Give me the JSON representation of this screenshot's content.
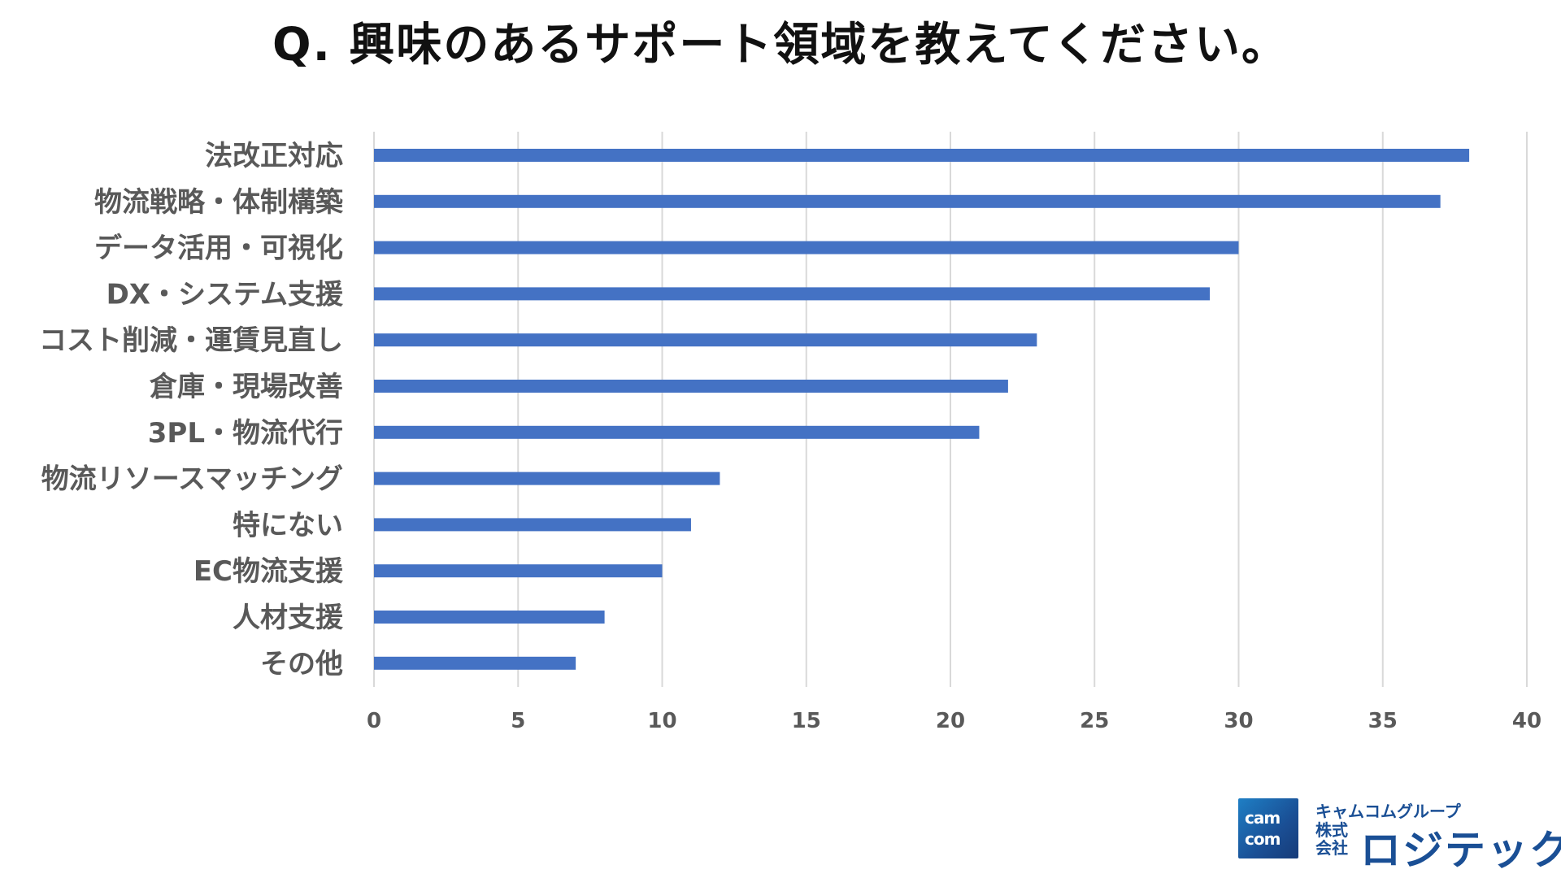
{
  "title": "Q.  興味のあるサポート領域を教えてください。",
  "chart_data": {
    "type": "bar",
    "orientation": "horizontal",
    "categories": [
      "法改正対応",
      "物流戦略・体制構築",
      "データ活用・可視化",
      "DX・システム支援",
      "コスト削減・運賃見直し",
      "倉庫・現場改善",
      "3PL・物流代行",
      "物流リソースマッチング",
      "特にない",
      "EC物流支援",
      "人材支援",
      "その他"
    ],
    "values": [
      38,
      37,
      30,
      29,
      23,
      22,
      21,
      12,
      11,
      10,
      8,
      7
    ],
    "xlim": [
      0,
      40
    ],
    "xticks": [
      0,
      5,
      10,
      15,
      20,
      25,
      30,
      35,
      40
    ],
    "grid": "vertical",
    "bar_color": "#4472c4",
    "grid_color": "#d9d9d9",
    "legend": "none"
  },
  "logo": {
    "mark_line1": "cam",
    "mark_line2": "com",
    "group_name": "キャムコムグループ",
    "kabushiki": "株式会社",
    "company": "ロジテック"
  }
}
